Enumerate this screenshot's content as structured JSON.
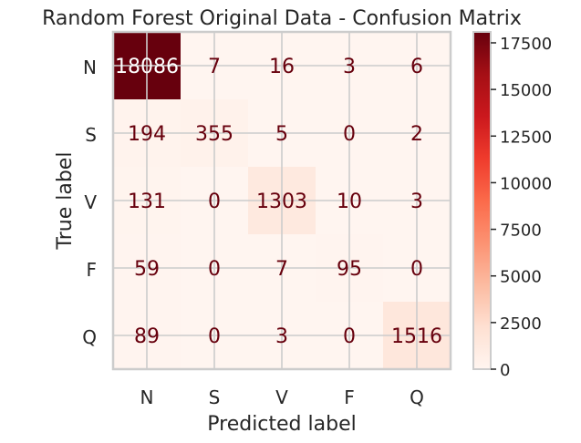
{
  "chart_data": {
    "type": "heatmap",
    "title": "Random Forest Original Data - Confusion Matrix",
    "xlabel": "Predicted label",
    "ylabel": "True label",
    "x_categories": [
      "N",
      "S",
      "V",
      "F",
      "Q"
    ],
    "y_categories": [
      "N",
      "S",
      "V",
      "F",
      "Q"
    ],
    "values": [
      [
        18086,
        7,
        16,
        3,
        6
      ],
      [
        194,
        355,
        5,
        0,
        2
      ],
      [
        131,
        0,
        1303,
        10,
        3
      ],
      [
        59,
        0,
        7,
        95,
        0
      ],
      [
        89,
        0,
        3,
        0,
        1516
      ]
    ],
    "colorbar": {
      "min": 0,
      "max": 18086,
      "ticks": [
        0,
        2500,
        5000,
        7500,
        10000,
        12500,
        15000,
        17500
      ],
      "colormap": "Reds"
    },
    "grid": true
  }
}
